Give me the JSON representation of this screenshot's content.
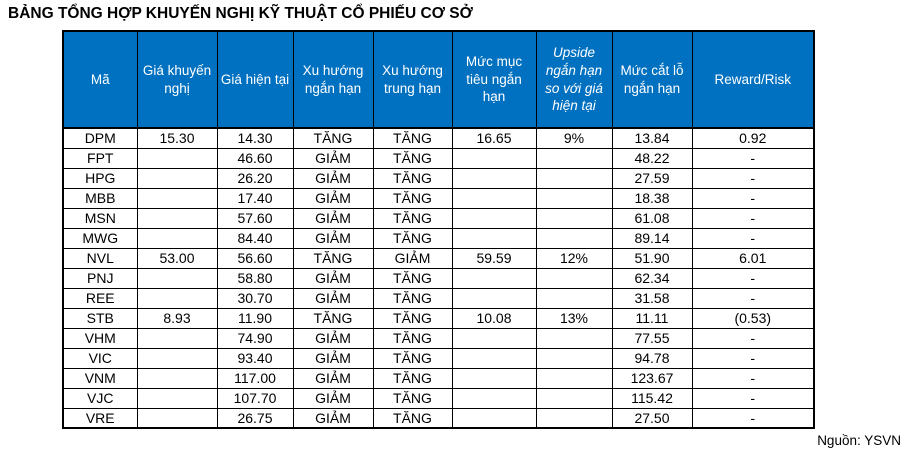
{
  "title": "BẢNG TỔNG HỢP KHUYẾN NGHỊ KỸ THUẬT CỔ PHIẾU CƠ SỞ",
  "source": "Nguồn: YSVN",
  "colors": {
    "header_bg": "#0070C0",
    "header_text": "#FFFFFF",
    "border": "#000000",
    "body_text": "#000000"
  },
  "table": {
    "headers": [
      "Mã",
      "Giá khuyến nghị",
      "Giá hiện tại",
      "Xu hướng ngắn hạn",
      "Xu hướng trung hạn",
      "Mức mục tiêu ngắn hạn",
      "Upside ngắn hạn so với giá hiện tại",
      "Mức cắt lỗ ngắn hạn",
      "Reward/Risk"
    ],
    "rows": [
      [
        "DPM",
        "15.30",
        "14.30",
        "TĂNG",
        "TĂNG",
        "16.65",
        "9%",
        "13.84",
        "0.92"
      ],
      [
        "FPT",
        "",
        "46.60",
        "GIẢM",
        "TĂNG",
        "",
        "",
        "48.22",
        "-"
      ],
      [
        "HPG",
        "",
        "26.20",
        "GIẢM",
        "TĂNG",
        "",
        "",
        "27.59",
        "-"
      ],
      [
        "MBB",
        "",
        "17.40",
        "GIẢM",
        "TĂNG",
        "",
        "",
        "18.38",
        "-"
      ],
      [
        "MSN",
        "",
        "57.60",
        "GIẢM",
        "TĂNG",
        "",
        "",
        "61.08",
        "-"
      ],
      [
        "MWG",
        "",
        "84.40",
        "GIẢM",
        "TĂNG",
        "",
        "",
        "89.14",
        "-"
      ],
      [
        "NVL",
        "53.00",
        "56.60",
        "TĂNG",
        "GIẢM",
        "59.59",
        "12%",
        "51.90",
        "6.01"
      ],
      [
        "PNJ",
        "",
        "58.80",
        "GIẢM",
        "TĂNG",
        "",
        "",
        "62.34",
        "-"
      ],
      [
        "REE",
        "",
        "30.70",
        "GIẢM",
        "TĂNG",
        "",
        "",
        "31.58",
        "-"
      ],
      [
        "STB",
        "8.93",
        "11.90",
        "TĂNG",
        "TĂNG",
        "10.08",
        "13%",
        "11.11",
        "(0.53)"
      ],
      [
        "VHM",
        "",
        "74.90",
        "GIẢM",
        "TĂNG",
        "",
        "",
        "77.55",
        "-"
      ],
      [
        "VIC",
        "",
        "93.40",
        "GIẢM",
        "TĂNG",
        "",
        "",
        "94.78",
        "-"
      ],
      [
        "VNM",
        "",
        "117.00",
        "GIẢM",
        "TĂNG",
        "",
        "",
        "123.67",
        "-"
      ],
      [
        "VJC",
        "",
        "107.70",
        "GIẢM",
        "TĂNG",
        "",
        "",
        "115.42",
        "-"
      ],
      [
        "VRE",
        "",
        "26.75",
        "GIẢM",
        "TĂNG",
        "",
        "",
        "27.50",
        "-"
      ]
    ]
  }
}
